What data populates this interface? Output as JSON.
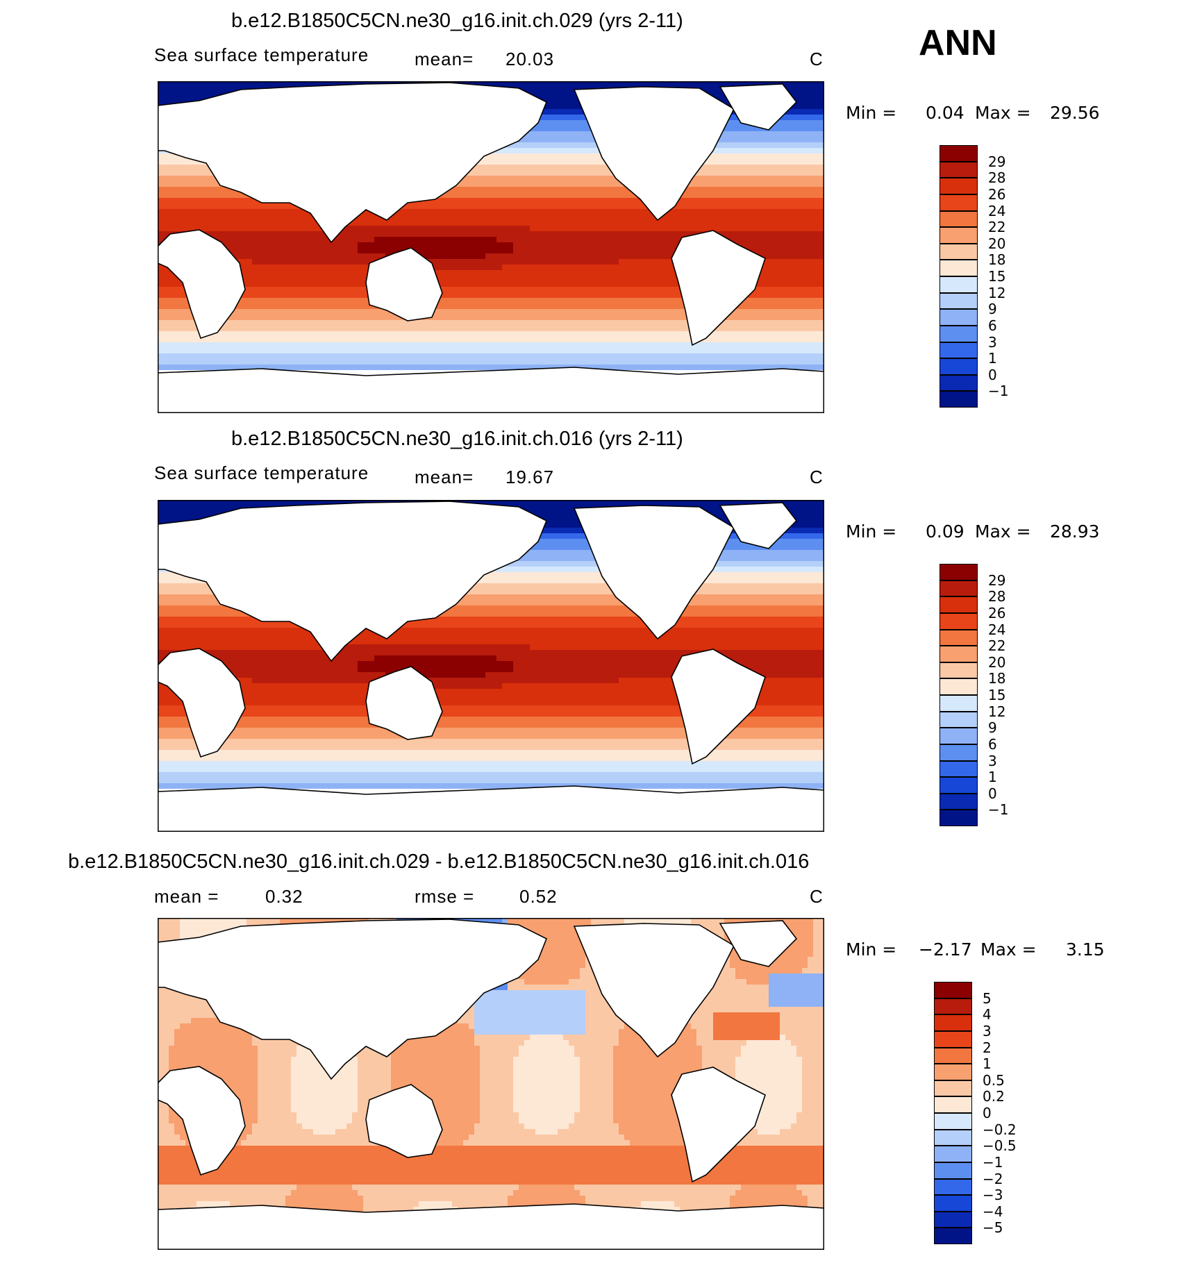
{
  "season": "ANN",
  "panels": [
    {
      "title": "b.e12.B1850C5CN.ne30_g16.init.ch.029 (yrs 2-11)",
      "variable": "Sea surface temperature",
      "stat1_label": "mean=",
      "stat1_value": "20.03",
      "units": "C",
      "min_label": "Min =",
      "min_value": "0.04",
      "max_label": "Max =",
      "max_value": "29.56",
      "colorbar": {
        "labels": [
          "29",
          "28",
          "26",
          "24",
          "22",
          "20",
          "18",
          "15",
          "12",
          "9",
          "6",
          "3",
          "1",
          "0",
          "−1"
        ],
        "colors": [
          "#8b0000",
          "#b81c0c",
          "#d8300c",
          "#e8451a",
          "#f27640",
          "#f8a070",
          "#fbc8a6",
          "#fde8d6",
          "#d6e8fb",
          "#b4cff9",
          "#8eb2f5",
          "#5d8ff0",
          "#3468ea",
          "#1647d6",
          "#0a2ab4",
          "#001488"
        ]
      },
      "field_hint": "sst"
    },
    {
      "title": "b.e12.B1850C5CN.ne30_g16.init.ch.016 (yrs 2-11)",
      "variable": "Sea surface temperature",
      "stat1_label": "mean=",
      "stat1_value": "19.67",
      "units": "C",
      "min_label": "Min =",
      "min_value": "0.09",
      "max_label": "Max =",
      "max_value": "28.93",
      "colorbar": {
        "labels": [
          "29",
          "28",
          "26",
          "24",
          "22",
          "20",
          "18",
          "15",
          "12",
          "9",
          "6",
          "3",
          "1",
          "0",
          "−1"
        ],
        "colors": [
          "#8b0000",
          "#b81c0c",
          "#d8300c",
          "#e8451a",
          "#f27640",
          "#f8a070",
          "#fbc8a6",
          "#fde8d6",
          "#d6e8fb",
          "#b4cff9",
          "#8eb2f5",
          "#5d8ff0",
          "#3468ea",
          "#1647d6",
          "#0a2ab4",
          "#001488"
        ]
      },
      "field_hint": "sst"
    },
    {
      "title": "b.e12.B1850C5CN.ne30_g16.init.ch.029 - b.e12.B1850C5CN.ne30_g16.init.ch.016",
      "stat1_label": "mean =",
      "stat1_value": "0.32",
      "stat2_label": "rmse =",
      "stat2_value": "0.52",
      "units": "C",
      "min_label": "Min =",
      "min_value": "−2.17",
      "max_label": "Max =",
      "max_value": "3.15",
      "colorbar": {
        "labels": [
          "5",
          "4",
          "3",
          "2",
          "1",
          "0.5",
          "0.2",
          "0",
          "−0.2",
          "−0.5",
          "−1",
          "−2",
          "−3",
          "−4",
          "−5"
        ],
        "colors": [
          "#8b0000",
          "#b81c0c",
          "#d8300c",
          "#e8451a",
          "#f27640",
          "#f8a070",
          "#fbc8a6",
          "#fde8d6",
          "#d6e8fb",
          "#b4cff9",
          "#8eb2f5",
          "#5d8ff0",
          "#3468ea",
          "#1647d6",
          "#0a2ab4",
          "#001488"
        ]
      },
      "field_hint": "diff"
    }
  ]
}
